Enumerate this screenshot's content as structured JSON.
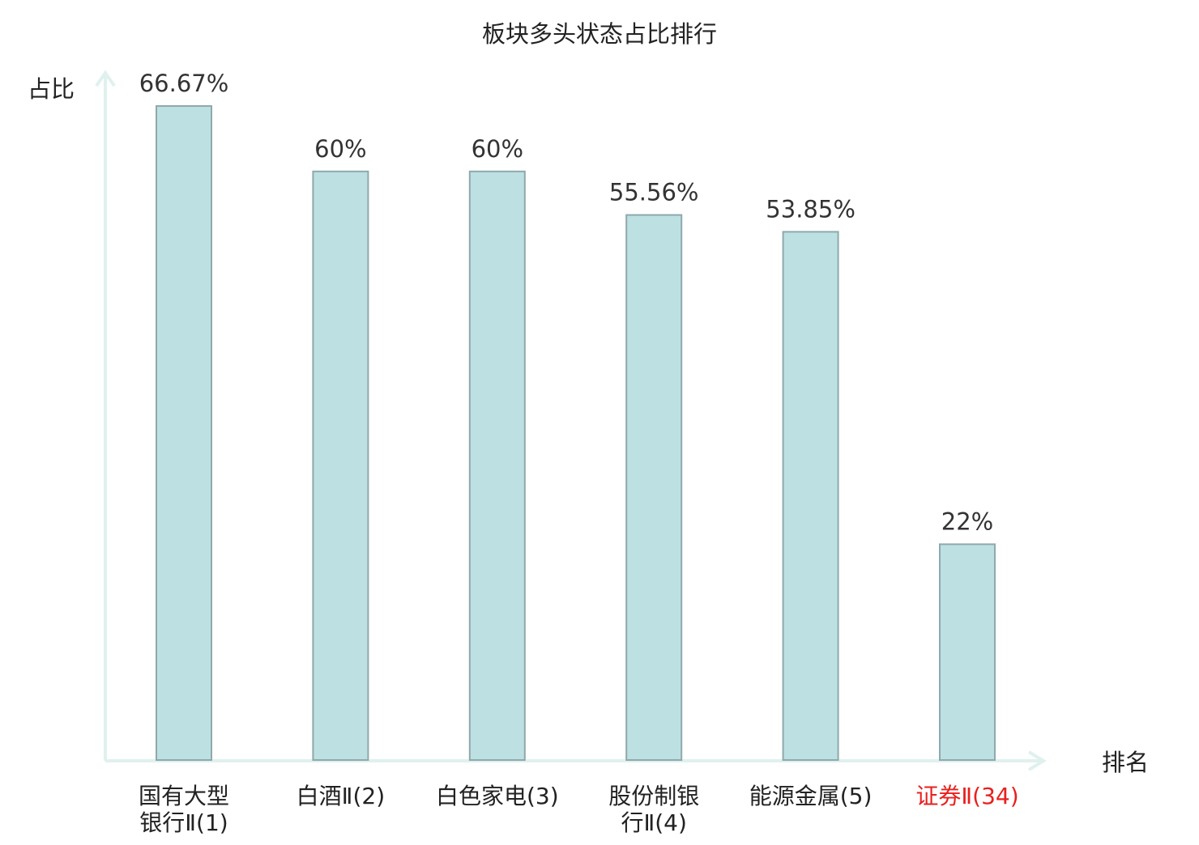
{
  "chart_data": {
    "type": "bar",
    "title": "板块多头状态占比排行",
    "ylabel": "占比",
    "xlabel": "排名",
    "ylim": [
      0,
      70
    ],
    "grid": false,
    "categories": [
      [
        "国有大型",
        "银行Ⅱ(1)"
      ],
      [
        "白酒Ⅱ(2)"
      ],
      [
        "白色家电(3)"
      ],
      [
        "股份制银",
        "行Ⅱ(4)"
      ],
      [
        "能源金属(5)"
      ],
      [
        "证券Ⅱ(34)"
      ]
    ],
    "values": [
      66.67,
      60,
      60,
      55.56,
      53.85,
      22
    ],
    "value_labels": [
      "66.67%",
      "60%",
      "60%",
      "55.56%",
      "53.85%",
      "22%"
    ],
    "highlight_index": 5,
    "colors": {
      "bar_fill": "#bde0e3",
      "bar_stroke": "#8fa9ab",
      "axis": "#dff1ee",
      "text": "#333333",
      "highlight_text": "#e8201e"
    }
  }
}
